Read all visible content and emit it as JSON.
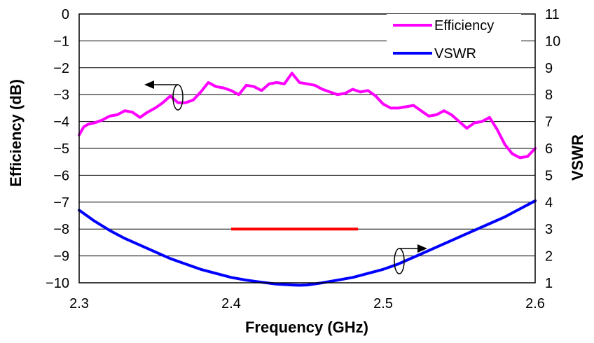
{
  "chart_data": {
    "type": "line",
    "xlabel": "Frequency (GHz)",
    "ylabel_left": "Efficiency (dB)",
    "ylabel_right": "VSWR",
    "xlim": [
      2.3,
      2.6
    ],
    "ylim_left": [
      -10,
      0
    ],
    "ylim_right": [
      1,
      11
    ],
    "x_ticks": [
      "2.3",
      "2.4",
      "2.5",
      "2.6"
    ],
    "y_left_ticks": [
      "0",
      "−1",
      "−2",
      "−3",
      "−4",
      "−5",
      "−6",
      "−7",
      "−8",
      "−9",
      "−10"
    ],
    "y_right_ticks": [
      "11",
      "10",
      "9",
      "8",
      "7",
      "6",
      "5",
      "4",
      "3",
      "2",
      "1"
    ],
    "grid": "horizontal",
    "legend_position": "top-right",
    "series": [
      {
        "name": "Efficiency",
        "axis": "left",
        "color": "#ff00ff",
        "x": [
          2.3,
          2.303,
          2.306,
          2.31,
          2.315,
          2.32,
          2.325,
          2.33,
          2.335,
          2.34,
          2.345,
          2.35,
          2.355,
          2.36,
          2.365,
          2.37,
          2.375,
          2.38,
          2.385,
          2.39,
          2.395,
          2.4,
          2.405,
          2.41,
          2.415,
          2.42,
          2.425,
          2.43,
          2.435,
          2.44,
          2.445,
          2.45,
          2.455,
          2.46,
          2.465,
          2.47,
          2.475,
          2.48,
          2.485,
          2.49,
          2.495,
          2.5,
          2.505,
          2.51,
          2.515,
          2.52,
          2.525,
          2.53,
          2.535,
          2.54,
          2.545,
          2.55,
          2.555,
          2.56,
          2.565,
          2.57,
          2.575,
          2.58,
          2.585,
          2.59,
          2.595,
          2.6
        ],
        "y": [
          -4.5,
          -4.2,
          -4.1,
          -4.05,
          -3.95,
          -3.8,
          -3.75,
          -3.6,
          -3.65,
          -3.85,
          -3.65,
          -3.5,
          -3.3,
          -3.05,
          -3.3,
          -3.3,
          -3.2,
          -2.9,
          -2.55,
          -2.7,
          -2.75,
          -2.85,
          -3.0,
          -2.65,
          -2.7,
          -2.85,
          -2.6,
          -2.55,
          -2.6,
          -2.2,
          -2.55,
          -2.6,
          -2.65,
          -2.8,
          -2.9,
          -3.0,
          -2.95,
          -2.8,
          -2.9,
          -2.85,
          -3.05,
          -3.35,
          -3.5,
          -3.5,
          -3.45,
          -3.4,
          -3.6,
          -3.8,
          -3.75,
          -3.6,
          -3.75,
          -4.0,
          -4.25,
          -4.05,
          -4.0,
          -3.85,
          -4.3,
          -4.85,
          -5.2,
          -5.35,
          -5.3,
          -5.0
        ]
      },
      {
        "name": "VSWR",
        "axis": "right",
        "color": "#0000ff",
        "x": [
          2.3,
          2.31,
          2.32,
          2.33,
          2.34,
          2.35,
          2.36,
          2.37,
          2.38,
          2.39,
          2.4,
          2.41,
          2.42,
          2.43,
          2.44,
          2.445,
          2.45,
          2.46,
          2.47,
          2.48,
          2.49,
          2.5,
          2.51,
          2.52,
          2.53,
          2.54,
          2.55,
          2.56,
          2.57,
          2.58,
          2.59,
          2.6
        ],
        "y": [
          3.7,
          3.3,
          2.95,
          2.65,
          2.4,
          2.15,
          1.9,
          1.7,
          1.5,
          1.35,
          1.2,
          1.1,
          1.02,
          0.95,
          0.92,
          0.91,
          0.92,
          1.0,
          1.1,
          1.2,
          1.35,
          1.5,
          1.7,
          1.95,
          2.2,
          2.45,
          2.7,
          2.95,
          3.2,
          3.45,
          3.75,
          4.05
        ]
      }
    ],
    "annotations": [
      {
        "type": "bar",
        "color": "#ff0000",
        "x": [
          2.4,
          2.4835
        ],
        "y_left": -8
      }
    ]
  }
}
